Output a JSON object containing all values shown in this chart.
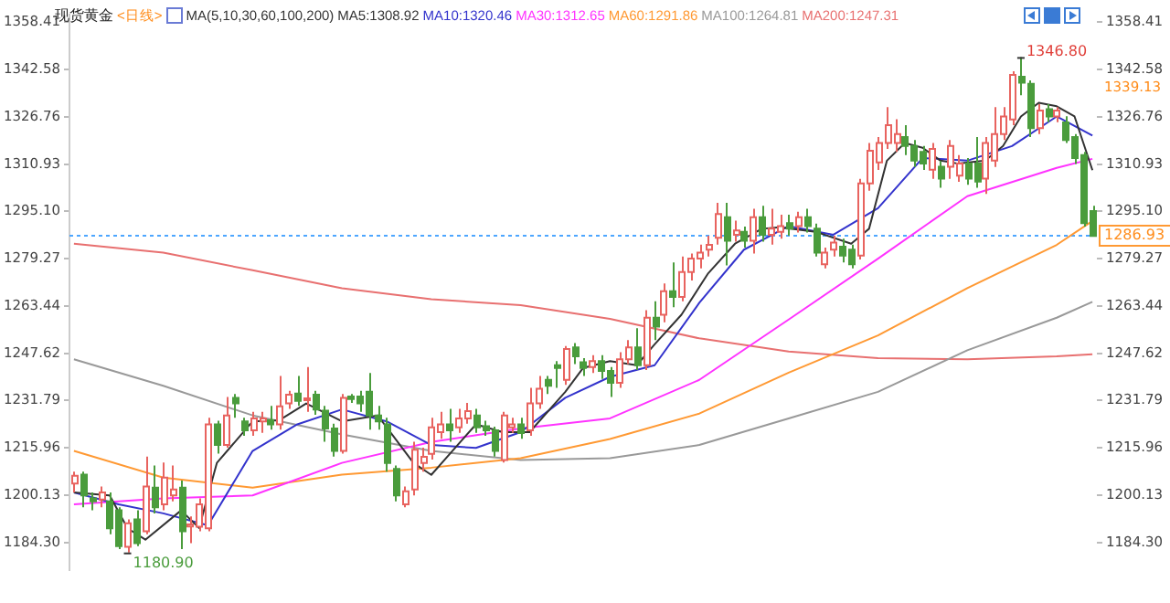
{
  "chart_data": {
    "type": "candlestick",
    "title": "现货黄金",
    "subtitle": "<日线>",
    "legend_title": "MA(5,10,30,60,100,200)",
    "legend": "top right",
    "marker": "none",
    "categories": [
      null,
      null,
      null,
      null,
      null,
      null,
      null,
      null,
      null,
      null,
      null,
      null,
      null,
      null,
      null,
      null,
      null,
      null,
      null,
      null,
      null,
      null,
      null,
      null,
      null,
      null,
      null,
      null,
      null,
      null,
      null,
      null,
      null,
      null,
      null,
      null,
      null,
      null,
      null,
      null,
      null,
      null,
      null,
      null,
      null,
      null,
      null,
      null,
      null,
      null,
      null,
      null,
      null,
      null,
      null,
      null,
      null,
      null,
      null,
      null,
      null,
      null,
      null,
      null,
      null,
      null,
      null,
      null,
      null,
      null,
      null,
      null,
      null,
      null,
      null,
      null,
      null,
      null,
      null,
      null,
      null,
      null,
      null,
      null,
      null,
      null,
      null,
      null,
      null,
      null,
      null,
      null,
      null,
      null,
      null,
      null,
      null,
      null,
      null,
      null,
      null,
      null,
      null,
      null,
      null,
      null,
      null,
      null,
      null,
      null,
      null,
      null,
      null,
      null,
      null
    ],
    "ohlc": [
      [
        1204.0,
        1208,
        1201,
        1206.6
      ],
      [
        1207,
        1208,
        1196,
        1200
      ],
      [
        1199,
        1201,
        1195,
        1198
      ],
      [
        1198.6,
        1203,
        1196,
        1201
      ],
      [
        1198,
        1201,
        1187,
        1189
      ],
      [
        1195,
        1196,
        1182,
        1183
      ],
      [
        1182.8,
        1192,
        1180.9,
        1190.7
      ],
      [
        1192,
        1195,
        1183,
        1184
      ],
      [
        1188,
        1213,
        1187,
        1203
      ],
      [
        1202.6,
        1210,
        1194,
        1196
      ],
      [
        1197,
        1211,
        1195,
        1206
      ],
      [
        1200,
        1210,
        1198,
        1202
      ],
      [
        1202.6,
        1205,
        1182,
        1188
      ],
      [
        1189.6,
        1193,
        1184,
        1190.3
      ],
      [
        1189.5,
        1199,
        1188,
        1197
      ],
      [
        1189,
        1226,
        1188,
        1223.8
      ],
      [
        1223.8,
        1225,
        1214,
        1216.9
      ],
      [
        1216.9,
        1233,
        1216,
        1226.8
      ],
      [
        1232.7,
        1234,
        1226,
        1230.8
      ],
      [
        1224.8,
        1226,
        1220,
        1221.8
      ],
      [
        1221.8,
        1228,
        1220,
        1225.8
      ],
      [
        1224.8,
        1228,
        1221,
        1225.8
      ],
      [
        1225.2,
        1230,
        1222,
        1223.8
      ],
      [
        1223.8,
        1240,
        1222,
        1229.8
      ],
      [
        1230.8,
        1235,
        1229,
        1233.7
      ],
      [
        1234.1,
        1240,
        1230,
        1231.7
      ],
      [
        1232,
        1243,
        1228,
        1232.5
      ],
      [
        1233.7,
        1235,
        1227,
        1228.8
      ],
      [
        1228.4,
        1230,
        1218,
        1222.4
      ],
      [
        1222.4,
        1224,
        1213,
        1214.9
      ],
      [
        1214.9,
        1234,
        1214,
        1232.7
      ],
      [
        1233.1,
        1234,
        1231,
        1232.3
      ],
      [
        1233.1,
        1235,
        1228,
        1230.8
      ],
      [
        1234.7,
        1241,
        1222,
        1226.8
      ],
      [
        1226.8,
        1230,
        1222,
        1224.8
      ],
      [
        1223.8,
        1226,
        1208,
        1210.9
      ],
      [
        1208.9,
        1210,
        1198,
        1200.0
      ],
      [
        1197.0,
        1203,
        1196,
        1201.4
      ],
      [
        1202.0,
        1218,
        1200,
        1215.3
      ],
      [
        1210.9,
        1216,
        1208,
        1212.9
      ],
      [
        1213.9,
        1226,
        1212,
        1222.8
      ],
      [
        1221.2,
        1228,
        1219,
        1223.8
      ],
      [
        1223.8,
        1229,
        1218,
        1221.8
      ],
      [
        1222.8,
        1229,
        1221,
        1225.8
      ],
      [
        1225.8,
        1231,
        1224,
        1228.2
      ],
      [
        1226.8,
        1229,
        1221,
        1222.8
      ],
      [
        1223.2,
        1225,
        1220,
        1221.8
      ],
      [
        1221.8,
        1223,
        1213,
        1214.9
      ],
      [
        1211.9,
        1228,
        1211,
        1226.8
      ],
      [
        1222.8,
        1226,
        1221,
        1223.8
      ],
      [
        1223.8,
        1226,
        1219,
        1220.9
      ],
      [
        1221.8,
        1236,
        1220,
        1230.8
      ],
      [
        1230.8,
        1240,
        1229,
        1235.7
      ],
      [
        1238.7,
        1240,
        1234,
        1236.7
      ],
      [
        1243.6,
        1245,
        1236,
        1242.7
      ],
      [
        1238.7,
        1250,
        1237,
        1249.0
      ],
      [
        1249.6,
        1251,
        1244,
        1246.6
      ],
      [
        1244.6,
        1246,
        1240,
        1242.7
      ],
      [
        1243.0,
        1247,
        1241,
        1245.0
      ],
      [
        1245.0,
        1247,
        1239,
        1241.7
      ],
      [
        1241.7,
        1243,
        1233,
        1237.7
      ],
      [
        1237.7,
        1248,
        1236,
        1245.6
      ],
      [
        1245.6,
        1252,
        1244,
        1249.6
      ],
      [
        1249.6,
        1256,
        1242,
        1243.6
      ],
      [
        1243.6,
        1262,
        1242,
        1259.5
      ],
      [
        1259.5,
        1265,
        1252,
        1256.5
      ],
      [
        1260.5,
        1271,
        1258,
        1268.4
      ],
      [
        1268.4,
        1278,
        1263,
        1266.5
      ],
      [
        1266.5,
        1280,
        1265,
        1274.8
      ],
      [
        1274.8,
        1281,
        1272,
        1279.3
      ],
      [
        1279.3,
        1284,
        1276,
        1281.3
      ],
      [
        1282.3,
        1287,
        1280,
        1283.9
      ],
      [
        1286.3,
        1298,
        1284,
        1294.2
      ],
      [
        1293.2,
        1298,
        1277,
        1285.3
      ],
      [
        1287.3,
        1292,
        1285,
        1288.7
      ],
      [
        1288.3,
        1290,
        1283,
        1285.3
      ],
      [
        1285.3,
        1296,
        1281,
        1293.2
      ],
      [
        1293.2,
        1297,
        1285,
        1287.3
      ],
      [
        1287.3,
        1296,
        1284,
        1289.3
      ],
      [
        1288.3,
        1294,
        1286,
        1290.2
      ],
      [
        1291.2,
        1294,
        1287,
        1289.3
      ],
      [
        1290.2,
        1295,
        1288,
        1293.2
      ],
      [
        1293.2,
        1296,
        1288,
        1290.2
      ],
      [
        1289.3,
        1291,
        1280,
        1281.3
      ],
      [
        1277.4,
        1283,
        1276,
        1281.3
      ],
      [
        1282.3,
        1287,
        1280,
        1284.7
      ],
      [
        1283.3,
        1286,
        1278,
        1280.3
      ],
      [
        1282.3,
        1284,
        1276,
        1277.4
      ],
      [
        1280.3,
        1306,
        1279,
        1304.5
      ],
      [
        1304.5,
        1318,
        1302,
        1315.4
      ],
      [
        1311.5,
        1320,
        1309,
        1318.0
      ],
      [
        1318.0,
        1330,
        1316,
        1324.0
      ],
      [
        1318.0,
        1326,
        1315,
        1321.0
      ],
      [
        1320.0,
        1324,
        1314,
        1317.0
      ],
      [
        1317.0,
        1319,
        1310,
        1312.1
      ],
      [
        1315.0,
        1317,
        1309,
        1311.1
      ],
      [
        1309.1,
        1318,
        1306,
        1316.0
      ],
      [
        1310.1,
        1312,
        1303,
        1306.1
      ],
      [
        1310.1,
        1319,
        1306,
        1317.0
      ],
      [
        1307.1,
        1314,
        1305,
        1311.1
      ],
      [
        1311.1,
        1313,
        1304,
        1306.1
      ],
      [
        1311.1,
        1320,
        1303,
        1305.1
      ],
      [
        1306.1,
        1320,
        1301,
        1318.0
      ],
      [
        1312.1,
        1330,
        1310,
        1321.0
      ],
      [
        1321.0,
        1330,
        1319,
        1326.9
      ],
      [
        1325.9,
        1342,
        1324,
        1340.8
      ],
      [
        1340.2,
        1346.8,
        1334,
        1338.2
      ],
      [
        1337.8,
        1339,
        1320,
        1323.0
      ],
      [
        1323.0,
        1331,
        1321,
        1328.9
      ],
      [
        1329.3,
        1331,
        1325,
        1326.9
      ],
      [
        1326.9,
        1330,
        1325,
        1328.9
      ],
      [
        1324.9,
        1327,
        1318,
        1319.0
      ],
      [
        1320.0,
        1321,
        1311,
        1313.0
      ],
      [
        1314.0,
        1315,
        1290,
        1291.2
      ],
      [
        1295.2,
        1297,
        1286.9,
        1286.9
      ]
    ],
    "series": [
      {
        "type": "line",
        "name": "MA5:1308.92",
        "color": "#333333",
        "values": [
          1201,
          null,
          null,
          null,
          1200,
          null,
          1189,
          null,
          1185.2,
          null,
          null,
          null,
          1195,
          null,
          1189.1,
          null,
          1210.9,
          null,
          null,
          null,
          1224.8,
          null,
          null,
          1225.2,
          null,
          null,
          1230.8,
          null,
          null,
          null,
          1224.8,
          null,
          null,
          null,
          1226.8,
          null,
          null,
          null,
          1210.9,
          null,
          1206.9,
          null,
          null,
          null,
          null,
          1223.8,
          null,
          null,
          1221.2,
          null,
          null,
          1221.2,
          null,
          null,
          null,
          1234.7,
          null,
          1242.7,
          null,
          null,
          1245.0,
          null,
          null,
          1243.6,
          null,
          1250.6,
          null,
          null,
          1260.5,
          null,
          null,
          1274.4,
          null,
          null,
          1284.3,
          null,
          null,
          1289.3,
          null,
          1289.8,
          null,
          null,
          null,
          1288.3,
          null,
          null,
          null,
          1284.3,
          null,
          1289.3,
          null,
          1312.1,
          null,
          1318.0,
          null,
          1316.4,
          null,
          1312.1,
          null,
          1311.1,
          null,
          null,
          1312.1,
          null,
          1317.0,
          null,
          1326.9,
          null,
          1331.5,
          null,
          1330.3,
          null,
          1326.9,
          null,
          1308.9
        ]
      },
      {
        "type": "line",
        "name": "MA10:1320.46",
        "color": "#3333cc",
        "values": [
          1201,
          null,
          null,
          null,
          null,
          1197,
          null,
          null,
          null,
          null,
          1194,
          null,
          null,
          null,
          null,
          1190,
          null,
          null,
          null,
          null,
          1214.9,
          null,
          null,
          null,
          null,
          1223.8,
          null,
          null,
          null,
          null,
          1228.8,
          null,
          null,
          null,
          null,
          1224.8,
          null,
          null,
          null,
          null,
          1216.9,
          null,
          null,
          null,
          null,
          1215.9,
          null,
          null,
          null,
          null,
          1221.2,
          null,
          null,
          null,
          null,
          1232.7,
          null,
          null,
          null,
          null,
          1239.7,
          null,
          null,
          null,
          null,
          1243.6,
          null,
          null,
          null,
          null,
          1264.5,
          null,
          null,
          null,
          null,
          1282.3,
          null,
          null,
          null,
          null,
          1290.2,
          null,
          null,
          null,
          null,
          1287.3,
          null,
          null,
          null,
          null,
          1296.2,
          null,
          null,
          null,
          null,
          1313.0,
          null,
          null,
          null,
          null,
          1312.1,
          null,
          null,
          null,
          null,
          1317.0,
          null,
          null,
          null,
          null,
          1326.9,
          null,
          null,
          null,
          1320.5
        ]
      },
      {
        "type": "line",
        "name": "MA30:1312.65",
        "color": "#ff33ff",
        "values": [
          1197.0,
          null,
          null,
          null,
          null,
          null,
          null,
          null,
          null,
          null,
          1199.0,
          null,
          null,
          null,
          null,
          null,
          null,
          null,
          null,
          null,
          1200.0,
          null,
          null,
          null,
          null,
          null,
          null,
          null,
          null,
          null,
          1210.9,
          null,
          null,
          null,
          null,
          null,
          null,
          null,
          null,
          null,
          1217.9,
          null,
          null,
          null,
          null,
          null,
          null,
          null,
          null,
          null,
          1222.4,
          null,
          null,
          null,
          null,
          null,
          null,
          null,
          null,
          null,
          1225.8,
          null,
          null,
          null,
          null,
          null,
          null,
          null,
          null,
          null,
          1238.7,
          null,
          null,
          null,
          null,
          null,
          null,
          null,
          null,
          null,
          1258.9,
          null,
          null,
          null,
          null,
          null,
          null,
          null,
          null,
          null,
          1279.3,
          null,
          null,
          null,
          null,
          null,
          null,
          null,
          null,
          null,
          1300.2,
          null,
          null,
          null,
          null,
          null,
          null,
          null,
          null,
          null,
          1309.7,
          null,
          null,
          null,
          1312.7
        ]
      },
      {
        "type": "line",
        "name": "MA60:1291.86",
        "color": "#ff9933",
        "values": [
          1214.9,
          null,
          null,
          null,
          null,
          null,
          null,
          null,
          null,
          null,
          1206,
          null,
          null,
          null,
          null,
          null,
          null,
          null,
          null,
          null,
          1202.6,
          null,
          null,
          null,
          null,
          null,
          null,
          null,
          null,
          null,
          1207,
          null,
          null,
          null,
          null,
          null,
          null,
          null,
          null,
          null,
          1209.3,
          null,
          null,
          null,
          null,
          null,
          null,
          null,
          null,
          null,
          1212.5,
          null,
          null,
          null,
          null,
          null,
          null,
          null,
          null,
          null,
          1218.9,
          null,
          null,
          null,
          null,
          null,
          null,
          null,
          null,
          null,
          1227.4,
          null,
          null,
          null,
          null,
          null,
          null,
          null,
          null,
          null,
          1241.1,
          null,
          null,
          null,
          null,
          null,
          null,
          null,
          null,
          null,
          1253.6,
          null,
          null,
          null,
          null,
          null,
          null,
          null,
          null,
          null,
          1269.4,
          null,
          null,
          null,
          null,
          null,
          null,
          null,
          null,
          null,
          1283.9,
          null,
          null,
          null,
          1291.9
        ]
      },
      {
        "type": "line",
        "name": "MA100:1264.81",
        "color": "#999999",
        "values": [
          1245.6,
          null,
          null,
          null,
          null,
          null,
          null,
          null,
          null,
          null,
          1236.7,
          null,
          null,
          null,
          null,
          null,
          null,
          null,
          null,
          null,
          1226.8,
          null,
          null,
          null,
          null,
          null,
          null,
          null,
          null,
          null,
          1220.4,
          null,
          null,
          null,
          null,
          null,
          null,
          null,
          null,
          null,
          1214.9,
          null,
          null,
          null,
          null,
          null,
          null,
          null,
          null,
          null,
          1211.9,
          null,
          null,
          null,
          null,
          null,
          null,
          null,
          null,
          null,
          1212.5,
          null,
          null,
          null,
          null,
          null,
          null,
          null,
          null,
          null,
          1216.9,
          null,
          null,
          null,
          null,
          null,
          null,
          null,
          null,
          null,
          1225.8,
          null,
          null,
          null,
          null,
          null,
          null,
          null,
          null,
          null,
          1234.7,
          null,
          null,
          null,
          null,
          null,
          null,
          null,
          null,
          null,
          1248.6,
          null,
          null,
          null,
          null,
          null,
          null,
          null,
          null,
          null,
          1259.5,
          null,
          null,
          null,
          1264.8
        ]
      },
      {
        "type": "line",
        "name": "MA200:1247.31",
        "color": "#e87070",
        "values": [
          1284.3,
          null,
          null,
          null,
          null,
          null,
          null,
          null,
          null,
          null,
          1281.3,
          null,
          null,
          null,
          null,
          null,
          null,
          null,
          null,
          null,
          1275.4,
          null,
          null,
          null,
          null,
          null,
          null,
          null,
          null,
          null,
          1269.4,
          null,
          null,
          null,
          null,
          null,
          null,
          null,
          null,
          null,
          1265.7,
          null,
          null,
          null,
          null,
          null,
          null,
          null,
          null,
          null,
          1263.7,
          null,
          null,
          null,
          null,
          null,
          null,
          null,
          null,
          null,
          1259.1,
          null,
          null,
          null,
          null,
          null,
          null,
          null,
          null,
          null,
          1252.6,
          null,
          null,
          null,
          null,
          null,
          null,
          null,
          null,
          null,
          1248.2,
          null,
          null,
          null,
          null,
          null,
          null,
          null,
          null,
          null,
          1246.0,
          null,
          null,
          null,
          null,
          null,
          null,
          null,
          null,
          null,
          1245.6,
          null,
          null,
          null,
          null,
          null,
          null,
          null,
          null,
          null,
          1246.6,
          null,
          null,
          null,
          1247.3
        ]
      }
    ],
    "ylim": [
      1175,
      1361
    ],
    "yticks": [
      1358.41,
      1342.58,
      1326.76,
      1310.93,
      {
        "value": 1295.1,
        "label": "1295.10"
      },
      1279.27,
      1263.44,
      1247.62,
      1231.79,
      1215.96,
      1200.13,
      {
        "value": 1184.3,
        "label": "1184.30"
      }
    ],
    "y2lim": [
      1175,
      1361
    ],
    "y2ticks": [
      1358.41,
      1342.58,
      1326.76,
      1310.93,
      {
        "value": 1295.1,
        "label": "1295.10"
      },
      1279.27,
      1263.44,
      1247.62,
      1231.79,
      1215.96,
      1200.13,
      {
        "value": 1184.3,
        "label": "1184.30"
      }
    ],
    "ref_lines": [
      {
        "axis": "y",
        "value": 1286.93,
        "label": "1286.93",
        "color": "#4da6ff",
        "line_style": "dotted"
      }
    ],
    "annotations": [
      "1346.80",
      "1180.90",
      "1339.13"
    ]
  }
}
